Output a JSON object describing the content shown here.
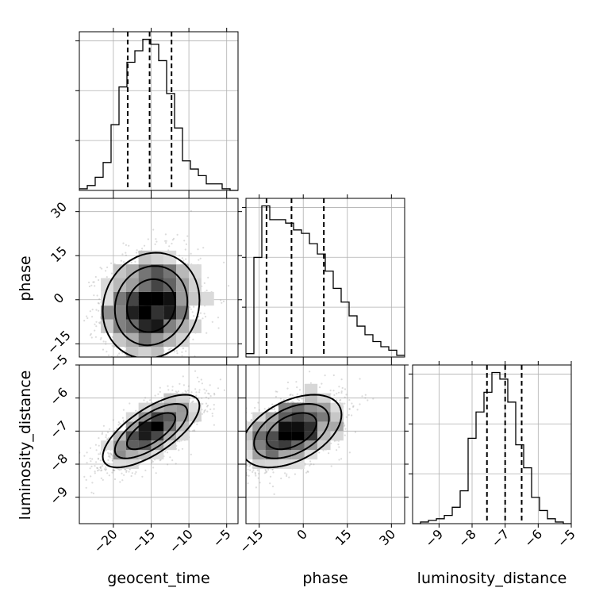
{
  "chart_data": {
    "type": "corner",
    "parameters": [
      "geocent_time",
      "phase",
      "luminosity_distance"
    ],
    "axis_ranges": {
      "geocent_time": [
        -24.5,
        -3.5
      ],
      "phase": [
        -19.5,
        34.5
      ],
      "luminosity_distance": [
        -9.8,
        -5.0
      ]
    },
    "ticks": {
      "geocent_time": [
        -20,
        -15,
        -10,
        -5
      ],
      "phase": [
        -15,
        0,
        15,
        30
      ],
      "luminosity_distance": [
        -9,
        -8,
        -7,
        -6,
        -5
      ]
    },
    "tick_labels": {
      "geocent_time": [
        "−20",
        "−15",
        "−10",
        "−5"
      ],
      "phase": [
        "−15",
        "0",
        "15",
        "30"
      ],
      "luminosity_distance": [
        "−9",
        "−8",
        "−7",
        "−6",
        "−5"
      ]
    },
    "quantiles": {
      "geocent_time": [
        -18.1,
        -15.2,
        -12.3
      ],
      "phase": [
        -12.5,
        -4.0,
        7.0
      ],
      "luminosity_distance": [
        -7.55,
        -7.0,
        -6.5
      ]
    },
    "histograms": {
      "geocent_time": {
        "edges": [
          -24.5,
          -23.45,
          -22.4,
          -21.35,
          -20.3,
          -19.25,
          -18.2,
          -17.15,
          -16.1,
          -15.05,
          -14.0,
          -12.95,
          -11.9,
          -10.85,
          -9.8,
          -8.75,
          -7.7,
          -6.65,
          -5.6,
          -4.55,
          -3.5
        ],
        "counts": [
          1,
          3,
          8,
          17,
          40,
          63,
          78,
          85,
          92,
          89,
          79,
          59,
          38,
          18,
          13,
          9,
          4,
          4,
          1,
          0
        ]
      },
      "phase": {
        "edges": [
          -19.5,
          -16.8,
          -14.1,
          -11.4,
          -8.7,
          -6.0,
          -3.3,
          -0.6,
          2.1,
          4.8,
          7.5,
          10.2,
          12.9,
          15.6,
          18.3,
          21.0,
          23.7,
          26.4,
          29.1,
          31.8,
          34.5
        ],
        "counts": [
          2,
          58,
          88,
          80,
          80,
          78,
          74,
          72,
          66,
          60,
          50,
          40,
          32,
          24,
          18,
          13,
          9,
          6,
          4,
          1
        ]
      },
      "luminosity_distance": {
        "edges": [
          -9.8,
          -9.56,
          -9.32,
          -9.08,
          -8.84,
          -8.6,
          -8.36,
          -8.12,
          -7.88,
          -7.64,
          -7.4,
          -7.16,
          -6.92,
          -6.68,
          -6.44,
          -6.2,
          -5.96,
          -5.72,
          -5.48,
          -5.24,
          -5.0
        ],
        "counts": [
          0,
          1,
          2,
          3,
          5,
          10,
          20,
          52,
          68,
          80,
          92,
          88,
          74,
          48,
          34,
          16,
          8,
          3,
          1,
          0
        ]
      }
    },
    "scatter": [
      {
        "x": "geocent_time",
        "y": "phase",
        "mean": [
          -15.0,
          -2.0
        ],
        "sd": [
          3.2,
          9.0
        ],
        "corr": 0.1
      },
      {
        "x": "geocent_time",
        "y": "luminosity_distance",
        "mean": [
          -15.0,
          -7.0
        ],
        "sd": [
          3.2,
          0.55
        ],
        "corr": 0.7
      },
      {
        "x": "phase",
        "y": "luminosity_distance",
        "mean": [
          -4.0,
          -7.0
        ],
        "sd": [
          8.5,
          0.55
        ],
        "corr": 0.45
      }
    ],
    "grid": true
  }
}
